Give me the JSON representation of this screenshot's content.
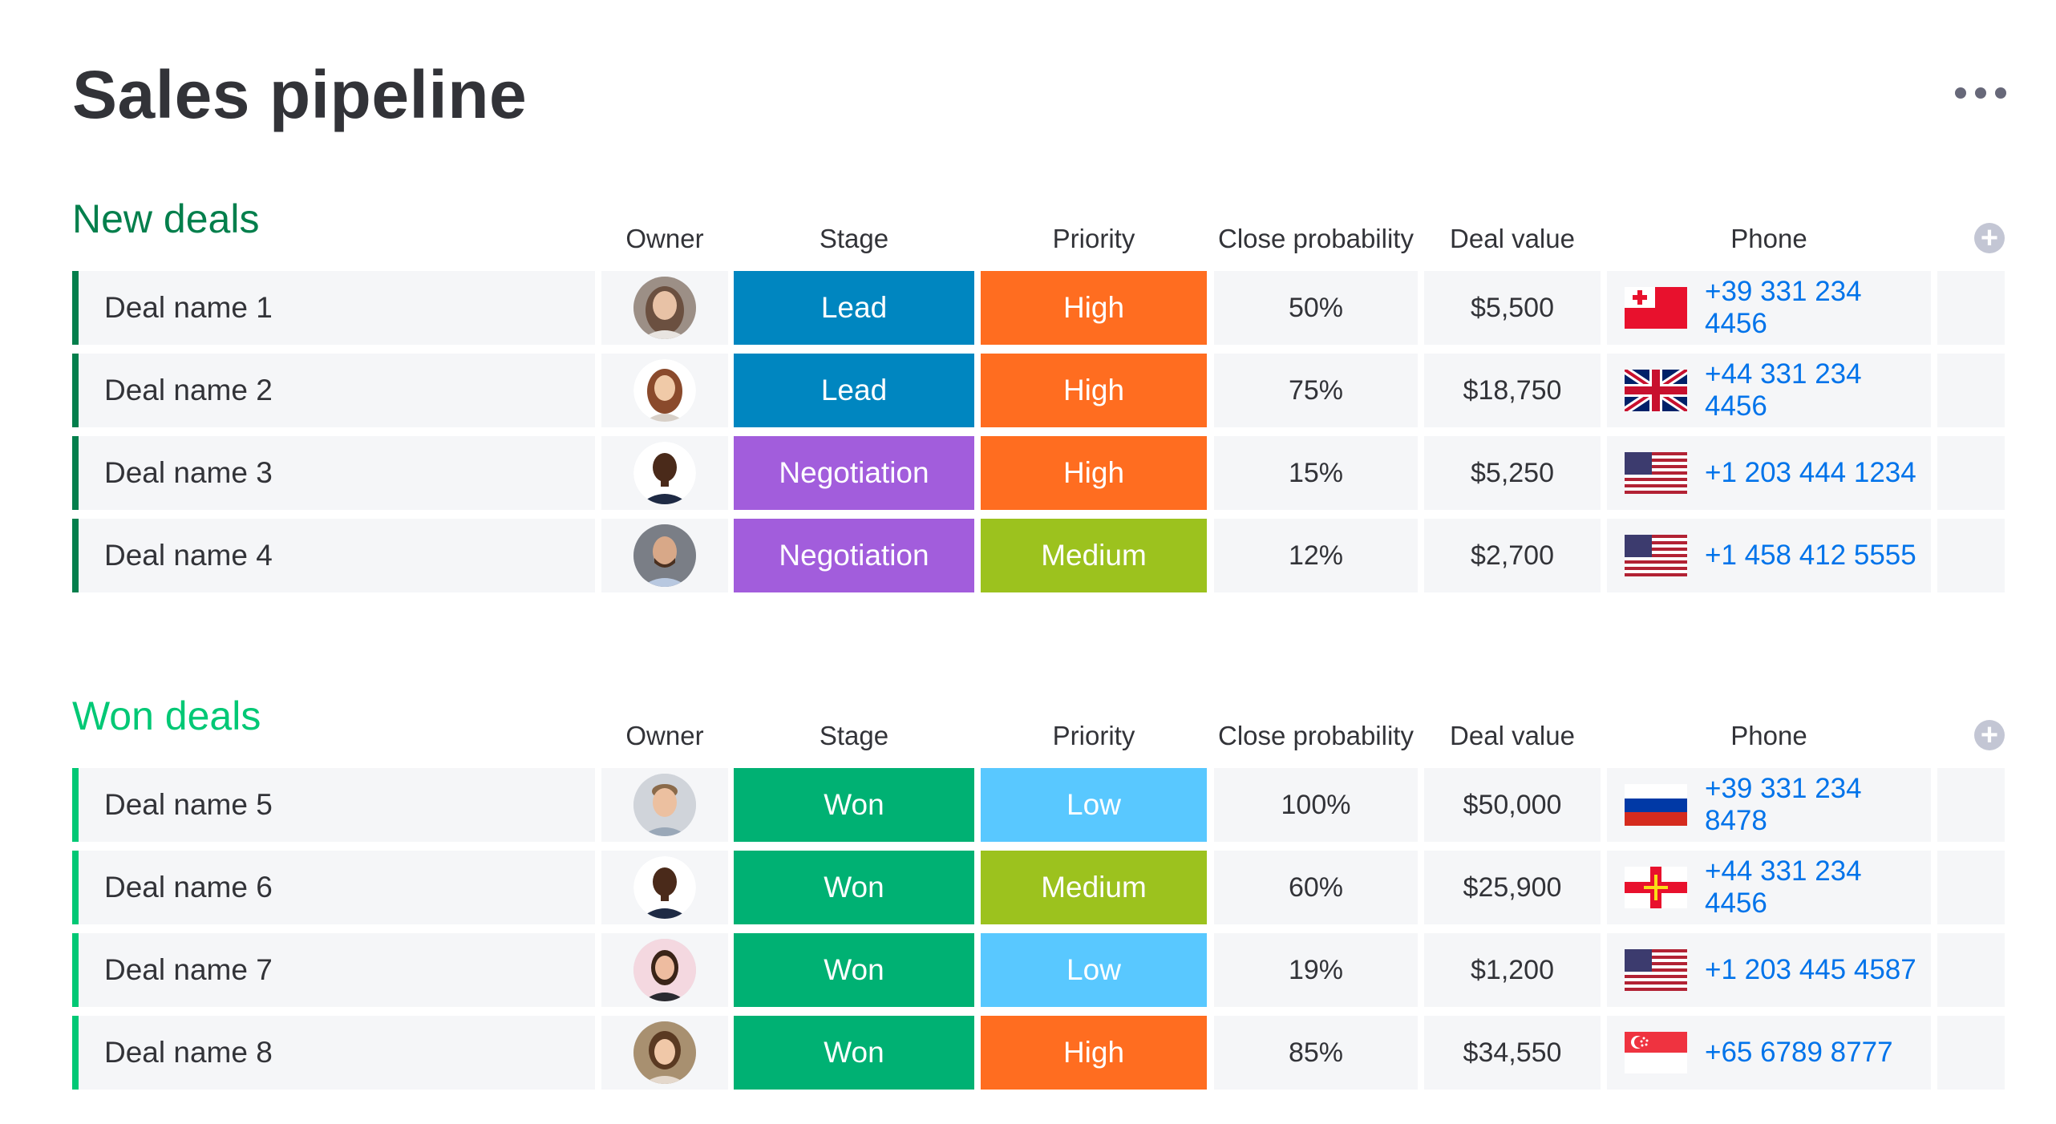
{
  "page": {
    "title": "Sales pipeline"
  },
  "colors": {
    "new_group": "#037f4c",
    "won_group": "#00c875",
    "lead": "#0086c0",
    "negotiation": "#a25ddc",
    "won": "#00b173",
    "high": "#ff6d20",
    "medium": "#9cc21e",
    "low": "#59c8ff"
  },
  "columns": {
    "owner": "Owner",
    "stage": "Stage",
    "priority": "Priority",
    "probability": "Close probability",
    "value": "Deal value",
    "phone": "Phone"
  },
  "groups": [
    {
      "title": "New deals",
      "rows": [
        {
          "name": "Deal name 1",
          "stage": "Lead",
          "priority": "High",
          "probability": "50%",
          "value": "$5,500",
          "phone": "+39 331 234 4456",
          "flag": "tonga-flag-icon"
        },
        {
          "name": "Deal name 2",
          "stage": "Lead",
          "priority": "High",
          "probability": "75%",
          "value": "$18,750",
          "phone": "+44 331 234 4456",
          "flag": "uk-flag-icon"
        },
        {
          "name": "Deal name 3",
          "stage": "Negotiation",
          "priority": "High",
          "probability": "15%",
          "value": "$5,250",
          "phone": "+1 203 444 1234",
          "flag": "us-flag-icon"
        },
        {
          "name": "Deal name 4",
          "stage": "Negotiation",
          "priority": "Medium",
          "probability": "12%",
          "value": "$2,700",
          "phone": "+1 458 412 5555",
          "flag": "us-flag-icon"
        }
      ]
    },
    {
      "title": "Won deals",
      "rows": [
        {
          "name": "Deal name 5",
          "stage": "Won",
          "priority": "Low",
          "probability": "100%",
          "value": "$50,000",
          "phone": "+39 331 234 8478",
          "flag": "russia-flag-icon"
        },
        {
          "name": "Deal name 6",
          "stage": "Won",
          "priority": "Medium",
          "probability": "60%",
          "value": "$25,900",
          "phone": "+44 331 234 4456",
          "flag": "guernsey-flag-icon"
        },
        {
          "name": "Deal name 7",
          "stage": "Won",
          "priority": "Low",
          "probability": "19%",
          "value": "$1,200",
          "phone": "+1 203 445 4587",
          "flag": "us-flag-icon"
        },
        {
          "name": "Deal name 8",
          "stage": "Won",
          "priority": "High",
          "probability": "85%",
          "value": "$34,550",
          "phone": "+65 6789 8777",
          "flag": "singapore-flag-icon"
        }
      ]
    }
  ]
}
